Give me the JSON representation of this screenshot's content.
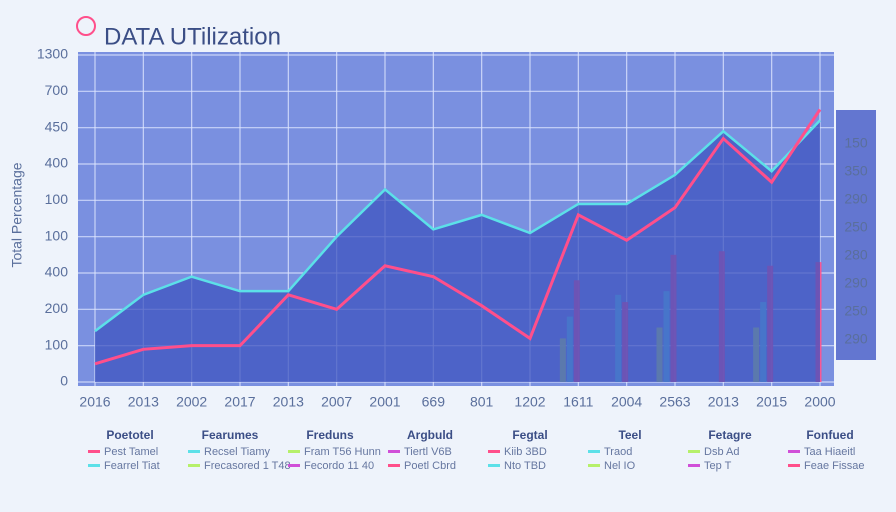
{
  "chart_data": {
    "type": "combo",
    "title": "DATA UTilization",
    "y_axis_title": "Total Percentage",
    "categories": [
      "2016",
      "2013",
      "2002",
      "2017",
      "2013",
      "2007",
      "2001",
      "669",
      "801",
      "1202",
      "1611",
      "2004",
      "2563",
      "2013",
      "2015",
      "2000"
    ],
    "y_axis_labels": [
      "0",
      "100",
      "200",
      "400",
      "100",
      "100",
      "400",
      "450",
      "700",
      "1300"
    ],
    "right_axis_labels": [
      "290",
      "250",
      "290",
      "280",
      "250",
      "290",
      "350",
      "150"
    ],
    "ylim": [
      0,
      9
    ],
    "grid": true,
    "series": [
      {
        "type": "area",
        "color": "#5ce0e8",
        "values": [
          1.4,
          2.4,
          2.9,
          2.5,
          2.5,
          4.0,
          5.3,
          4.2,
          4.6,
          4.1,
          4.9,
          4.9,
          5.7,
          6.9,
          5.8,
          7.2
        ]
      },
      {
        "type": "line",
        "color": "#ff4f8b",
        "values": [
          0.5,
          0.9,
          1.0,
          1.0,
          2.4,
          2.0,
          3.2,
          2.9,
          2.1,
          1.2,
          4.6,
          3.9,
          4.8,
          6.7,
          5.5,
          7.5
        ]
      },
      {
        "type": "bar",
        "color": "#b6f06a",
        "values": [
          null,
          null,
          null,
          null,
          null,
          null,
          null,
          null,
          null,
          null,
          1.2,
          null,
          1.5,
          null,
          1.5,
          null
        ]
      },
      {
        "type": "bar",
        "color": "#5ce0e8",
        "values": [
          null,
          null,
          null,
          null,
          null,
          null,
          null,
          null,
          null,
          null,
          1.8,
          2.4,
          2.5,
          null,
          2.2,
          null
        ]
      },
      {
        "type": "bar",
        "color": "#ff4f8b",
        "values": [
          null,
          null,
          null,
          null,
          null,
          null,
          null,
          null,
          null,
          null,
          2.8,
          2.2,
          3.5,
          3.6,
          3.2,
          3.3
        ]
      }
    ],
    "legend": [
      {
        "title": "Poetotel",
        "items": [
          "Pest Tamel",
          "Fearrel Tiat"
        ]
      },
      {
        "title": "Fearumes",
        "items": [
          "Recsel Tiamy",
          "Frecasored 1 T48"
        ]
      },
      {
        "title": "Freduns",
        "items": [
          "Fram T56 Hunn",
          "Fecordo 11 40"
        ]
      },
      {
        "title": "Argbuld",
        "items": [
          "Tiertl V6B",
          "Poetl Cbrd"
        ]
      },
      {
        "title": "Fegtal",
        "items": [
          "Kiib 3BD",
          "Nto TBD"
        ]
      },
      {
        "title": "Teel",
        "items": [
          "Traod",
          "Nel IO"
        ]
      },
      {
        "title": "Fetagre",
        "items": [
          "Dsb Ad",
          "Tep T"
        ]
      },
      {
        "title": "Fonfued",
        "items": [
          "Taa Hiaeitl",
          "Feae Fissae"
        ]
      }
    ]
  }
}
